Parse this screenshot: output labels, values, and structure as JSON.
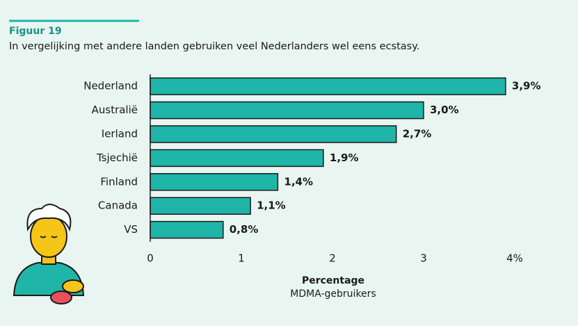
{
  "chart_data": {
    "type": "bar",
    "orientation": "horizontal",
    "figure_label": "Figuur 19",
    "title": "In vergelijking met andere landen gebruiken veel Nederlanders wel eens ecstasy.",
    "categories": [
      "Nederland",
      "Australië",
      "Ierland",
      "Tsjechië",
      "Finland",
      "Canada",
      "VS"
    ],
    "values": [
      3.9,
      3.0,
      2.7,
      1.9,
      1.4,
      1.1,
      0.8
    ],
    "value_labels": [
      "3,9%",
      "3,0%",
      "2,7%",
      "1,9%",
      "1,4%",
      "1,1%",
      "0,8%"
    ],
    "color": "#1fb5a8",
    "xlim": [
      0,
      4
    ],
    "xticks": [
      0,
      1,
      2,
      3,
      {
        "value": 4,
        "label": "4%"
      }
    ],
    "xlabel": "Percentage",
    "xlabel_sub": "MDMA-gebruikers",
    "grid": false
  }
}
